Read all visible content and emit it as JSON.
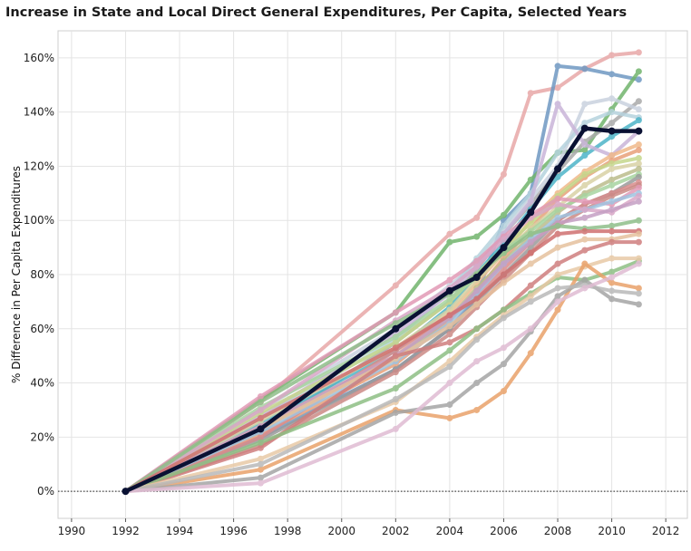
{
  "chart_data": {
    "type": "line",
    "title": "Increase in State and Local Direct General Expenditures, Per Capita, Selected Years",
    "xlabel": "",
    "ylabel": "% Difference in Per Capita Expenditures",
    "xlim": [
      1989.5,
      2012.8
    ],
    "ylim": [
      -10,
      170
    ],
    "x_ticks": [
      "1990",
      "1992",
      "1994",
      "1996",
      "1998",
      "2000",
      "2002",
      "2004",
      "2006",
      "2008",
      "2010",
      "2012"
    ],
    "y_ticks": [
      "0%",
      "20%",
      "40%",
      "60%",
      "80%",
      "100%",
      "120%",
      "140%",
      "160%"
    ],
    "x_tick_values": [
      1990,
      1992,
      1994,
      1996,
      1998,
      2000,
      2002,
      2004,
      2006,
      2008,
      2010,
      2012
    ],
    "y_tick_values": [
      0,
      20,
      40,
      60,
      80,
      100,
      120,
      140,
      160
    ],
    "grid": true,
    "zero_line": "dotted",
    "legend": "none",
    "x": [
      1992,
      1997,
      2002,
      2004,
      2005,
      2006,
      2007,
      2008,
      2009,
      2010,
      2011
    ],
    "series": [
      {
        "color": "#e8a8a8",
        "values": [
          0,
          33,
          76,
          95,
          101,
          117,
          147,
          149,
          156,
          161,
          162
        ]
      },
      {
        "color": "#6f98c2",
        "values": [
          0,
          20,
          45,
          60,
          72,
          100,
          110,
          157,
          156,
          154,
          152
        ]
      },
      {
        "color": "#72b56d",
        "values": [
          0,
          34,
          66,
          92,
          94,
          102,
          115,
          125,
          126,
          141,
          155
        ]
      },
      {
        "color": "#aaaaaa",
        "values": [
          0,
          22,
          55,
          70,
          82,
          95,
          106,
          118,
          129,
          136,
          144
        ]
      },
      {
        "color": "#c9d2df",
        "values": [
          0,
          30,
          60,
          76,
          84,
          96,
          108,
          120,
          143,
          145,
          141
        ]
      },
      {
        "color": "#b6d3de",
        "values": [
          0,
          27,
          56,
          74,
          86,
          98,
          110,
          125,
          136,
          140,
          138
        ]
      },
      {
        "color": "#4db4c8",
        "values": [
          0,
          25,
          52,
          68,
          80,
          92,
          104,
          116,
          124,
          131,
          137
        ]
      },
      {
        "color": "#c9b5d9",
        "values": [
          0,
          28,
          58,
          73,
          83,
          95,
          107,
          143,
          128,
          124,
          133
        ]
      },
      {
        "color": "#f0b98a",
        "values": [
          0,
          24,
          50,
          66,
          77,
          88,
          100,
          110,
          118,
          124,
          128
        ]
      },
      {
        "color": "#e8a07a",
        "values": [
          0,
          21,
          47,
          63,
          74,
          86,
          97,
          108,
          116,
          122,
          126
        ]
      },
      {
        "color": "#c5d88c",
        "values": [
          0,
          29,
          55,
          70,
          80,
          90,
          99,
          109,
          117,
          121,
          123
        ]
      },
      {
        "color": "#d9d2a5",
        "values": [
          0,
          26,
          53,
          67,
          78,
          88,
          97,
          105,
          113,
          119,
          121
        ]
      },
      {
        "color": "#bcbd8c",
        "values": [
          0,
          23,
          49,
          64,
          75,
          85,
          94,
          103,
          110,
          115,
          119
        ]
      },
      {
        "color": "#a7d4a0",
        "values": [
          0,
          31,
          57,
          71,
          79,
          89,
          96,
          104,
          109,
          113,
          117
        ]
      },
      {
        "color": "#9b9b9b",
        "values": [
          0,
          19,
          45,
          60,
          70,
          80,
          90,
          100,
          106,
          110,
          116
        ]
      },
      {
        "color": "#d98c8c",
        "values": [
          0,
          20,
          52,
          65,
          72,
          82,
          92,
          100,
          106,
          110,
          114
        ]
      },
      {
        "color": "#cc8a86",
        "values": [
          0,
          17,
          44,
          58,
          68,
          78,
          88,
          98,
          104,
          109,
          113
        ]
      },
      {
        "color": "#e29ab6",
        "values": [
          0,
          35,
          66,
          78,
          85,
          94,
          102,
          108,
          107,
          106,
          112
        ]
      },
      {
        "color": "#9fc4e0",
        "values": [
          0,
          22,
          48,
          62,
          73,
          84,
          93,
          101,
          104,
          107,
          110
        ]
      },
      {
        "color": "#d9a7c7",
        "values": [
          0,
          30,
          63,
          75,
          83,
          93,
          101,
          106,
          104,
          103,
          109
        ]
      },
      {
        "color": "#c59fc4",
        "values": [
          0,
          24,
          50,
          64,
          74,
          84,
          92,
          99,
          101,
          104,
          107
        ]
      },
      {
        "color": "#8fbf8a",
        "values": [
          0,
          33,
          62,
          73,
          80,
          88,
          95,
          98,
          97,
          98,
          100
        ]
      },
      {
        "color": "#d07070",
        "values": [
          0,
          27,
          53,
          65,
          71,
          80,
          88,
          95,
          96,
          96,
          96
        ]
      },
      {
        "color": "#e6c19e",
        "values": [
          0,
          23,
          49,
          61,
          69,
          77,
          84,
          90,
          93,
          93,
          95
        ]
      },
      {
        "color": "#cf7e7e",
        "values": [
          0,
          16,
          50,
          55,
          60,
          67,
          76,
          84,
          89,
          92,
          92
        ]
      },
      {
        "color": "#8ebf84",
        "values": [
          0,
          18,
          38,
          52,
          60,
          67,
          73,
          79,
          78,
          81,
          85
        ]
      },
      {
        "color": "#e8c9a6",
        "values": [
          0,
          12,
          33,
          48,
          57,
          65,
          72,
          80,
          83,
          86,
          86
        ]
      },
      {
        "color": "#e9a26a",
        "values": [
          0,
          8,
          30,
          27,
          30,
          37,
          51,
          67,
          84,
          77,
          75
        ]
      },
      {
        "color": "#a5a5a5",
        "values": [
          0,
          5,
          29,
          32,
          40,
          47,
          59,
          72,
          78,
          71,
          69
        ]
      },
      {
        "color": "#b9b9b9",
        "values": [
          0,
          10,
          34,
          46,
          56,
          64,
          70,
          75,
          76,
          74,
          73
        ]
      },
      {
        "color": "#e0bcd3",
        "values": [
          0,
          3,
          23,
          40,
          48,
          53,
          60,
          70,
          75,
          79,
          84
        ]
      },
      {
        "color": "#0a1133",
        "values": [
          0,
          23,
          60,
          74,
          79,
          90,
          103,
          119,
          134,
          133,
          133
        ]
      }
    ]
  }
}
